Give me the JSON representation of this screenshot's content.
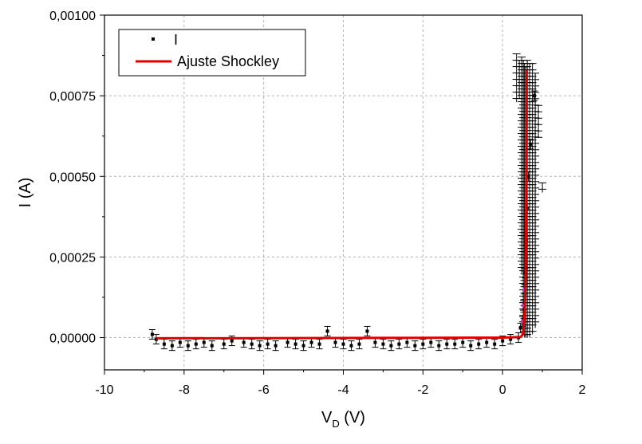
{
  "chart_data": {
    "type": "scatter",
    "title": "",
    "xlabel_main": "V",
    "xlabel_sub": "D",
    "xlabel_unit": " (V)",
    "ylabel": "I (A)",
    "xlim": [
      -10,
      2
    ],
    "ylim": [
      -0.0001,
      0.001
    ],
    "x_ticks": [
      -10,
      -8,
      -6,
      -4,
      -2,
      0,
      2
    ],
    "x_tick_labels": [
      "-10",
      "-8",
      "-6",
      "-4",
      "-2",
      "0",
      "2"
    ],
    "y_ticks": [
      0,
      0.00025,
      0.0005,
      0.00075,
      0.001
    ],
    "y_tick_labels": [
      "0,00000",
      "0,00025",
      "0,00050",
      "0,00075",
      "0,00100"
    ],
    "grid": true,
    "legend_position": "top-left",
    "colors": {
      "data": "#000000",
      "fit": "#dd0000",
      "highlight": "#cc33cc",
      "grid": "#b4b4b4"
    },
    "series": [
      {
        "name": "I",
        "kind": "points",
        "x": [
          -8.8,
          -8.7,
          -8.5,
          -8.3,
          -8.1,
          -7.9,
          -7.7,
          -7.5,
          -7.3,
          -7.0,
          -6.8,
          -6.5,
          -6.3,
          -6.1,
          -5.9,
          -5.7,
          -5.4,
          -5.2,
          -5.0,
          -4.8,
          -4.6,
          -4.4,
          -4.2,
          -4.0,
          -3.8,
          -3.6,
          -3.4,
          -3.2,
          -3.0,
          -2.8,
          -2.6,
          -2.4,
          -2.2,
          -2.0,
          -1.8,
          -1.6,
          -1.4,
          -1.2,
          -1.0,
          -0.8,
          -0.6,
          -0.4,
          -0.2,
          0.0,
          0.2,
          0.4,
          0.45,
          0.5,
          0.52,
          0.55,
          0.57,
          0.6,
          0.62,
          0.65,
          0.7,
          0.8
        ],
        "y": [
          1e-05,
          -5e-06,
          -2e-05,
          -2.5e-05,
          -1.5e-05,
          -2.5e-05,
          -2e-05,
          -1.5e-05,
          -2.5e-05,
          -2e-05,
          -1e-05,
          -1.5e-05,
          -2e-05,
          -2.5e-05,
          -2e-05,
          -2.5e-05,
          -1.5e-05,
          -2e-05,
          -2.5e-05,
          -1.5e-05,
          -2e-05,
          2e-05,
          -1.5e-05,
          -2e-05,
          -2.5e-05,
          -2e-05,
          2e-05,
          -1.5e-05,
          -2e-05,
          -2.5e-05,
          -2e-05,
          -1.5e-05,
          -2.5e-05,
          -2e-05,
          -1.5e-05,
          -2.5e-05,
          -2e-05,
          -2e-05,
          -1.5e-05,
          -2.5e-05,
          -2e-05,
          -1.5e-05,
          -2e-05,
          -1e-05,
          -5e-06,
          0.0,
          3e-05,
          5e-05,
          0.0001,
          0.00015,
          0.0002,
          0.0003,
          0.0004,
          0.0005,
          0.0006,
          0.00075
        ]
      },
      {
        "name": "Ajuste Shockley",
        "kind": "line",
        "x": [
          -8.7,
          -6.0,
          -3.0,
          0.0,
          0.45,
          0.5,
          0.52,
          0.54,
          0.56,
          0.58,
          0.6,
          0.605
        ],
        "y": [
          -2e-06,
          -1.5e-06,
          -1e-06,
          0.0,
          2e-06,
          8e-06,
          2e-05,
          5e-05,
          9e-05,
          0.0002,
          0.0005,
          0.00083
        ]
      }
    ],
    "vertical_cluster": {
      "x": [
        0.35,
        0.42,
        0.48,
        0.52,
        0.55,
        0.58,
        0.62,
        0.68,
        0.75,
        0.82,
        0.9,
        1.0
      ],
      "y_top": [
        0.00088,
        0.00086,
        0.00087,
        0.00086,
        0.00085,
        0.00084,
        0.00086,
        0.00085,
        0.00085,
        0.00082,
        0.00072,
        0.00048
      ],
      "y_bottom": [
        0.00073,
        0.00074,
        0.0002,
        1e-05,
        0.0,
        0.0,
        0.0,
        0.0,
        1e-05,
        3e-05,
        0.00062,
        0.00045
      ]
    }
  }
}
